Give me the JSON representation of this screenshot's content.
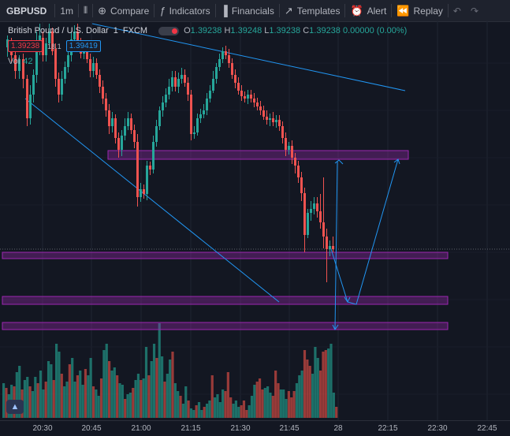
{
  "toolbar": {
    "symbol": "GBPUSD",
    "interval": "1m",
    "bar_style_icon": "candles-icon",
    "compare_label": "Compare",
    "indicators_label": "Indicators",
    "financials_label": "Financials",
    "templates_label": "Templates",
    "alert_label": "Alert",
    "replay_label": "Replay",
    "undo_icon": "undo-icon",
    "redo_icon": "redo-icon"
  },
  "legend": {
    "title": "British Pound / U.S. Dollar",
    "interval": "1",
    "exchange": "FXCM",
    "o_key": "O",
    "o_val": "1.39238",
    "h_key": "H",
    "h_val": "1.39248",
    "l_key": "L",
    "l_val": "1.39238",
    "c_key": "C",
    "c_val": "1.39238",
    "change": "0.00000 (0.00%)"
  },
  "prices": {
    "bid": "1.39238",
    "spread": "18.1",
    "ask": "1.39419"
  },
  "volume": {
    "label": "Vol",
    "value": "42"
  },
  "x_axis": {
    "ticks": [
      "20:30",
      "20:45",
      "21:00",
      "21:15",
      "21:30",
      "21:45",
      "28",
      "22:15",
      "22:30",
      "22:45"
    ]
  },
  "colors": {
    "up": "#26a69a",
    "down": "#ef5350",
    "zone": "#9c27b0",
    "drawing": "#2196f3",
    "background": "#131722"
  }
}
